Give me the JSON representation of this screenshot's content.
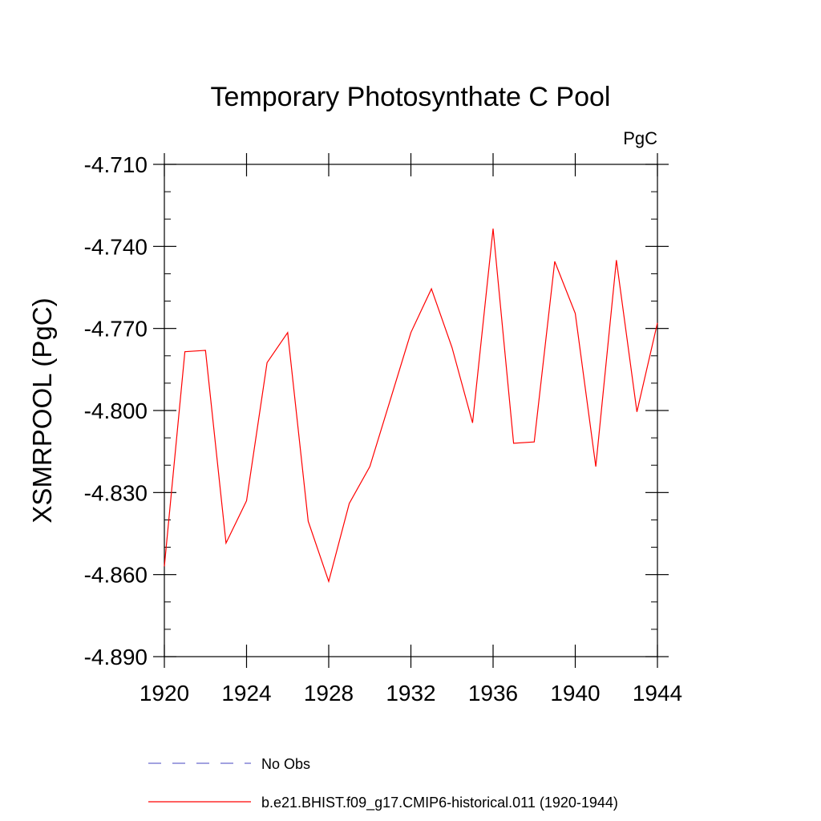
{
  "chart_data": {
    "type": "line",
    "title": "Temporary Photosynthate C Pool",
    "units_label": "PgC",
    "ylabel": "XSMRPOOL  (PgC)",
    "xlabel": "",
    "xlim": [
      1920,
      1944
    ],
    "ylim": [
      -4.89,
      -4.71
    ],
    "x_ticks": [
      1920,
      1924,
      1928,
      1932,
      1936,
      1940,
      1944
    ],
    "x_tick_labels": [
      "1920",
      "1924",
      "1928",
      "1932",
      "1936",
      "1940",
      "1944"
    ],
    "y_ticks": [
      -4.71,
      -4.74,
      -4.77,
      -4.8,
      -4.83,
      -4.86,
      -4.89
    ],
    "y_tick_labels": [
      "-4.710",
      "-4.740",
      "-4.770",
      "-4.800",
      "-4.830",
      "-4.860",
      "-4.890"
    ],
    "grid": false,
    "legend_position": "bottom",
    "series": [
      {
        "name": "b.e21.BHIST.f09_g17.CMIP6-historical.011 (1920-1944)",
        "color": "#ff0000",
        "style": "solid",
        "x": [
          1920,
          1921,
          1922,
          1923,
          1924,
          1925,
          1926,
          1927,
          1928,
          1929,
          1930,
          1931,
          1932,
          1933,
          1934,
          1935,
          1936,
          1937,
          1938,
          1939,
          1940,
          1941,
          1942,
          1943,
          1944
        ],
        "values": [
          -4.857,
          -4.7785,
          -4.778,
          -4.8485,
          -4.833,
          -4.7825,
          -4.7715,
          -4.8405,
          -4.8625,
          -4.834,
          -4.8205,
          -4.796,
          -4.7715,
          -4.7555,
          -4.777,
          -4.8045,
          -4.7335,
          -4.812,
          -4.8115,
          -4.7455,
          -4.7645,
          -4.8205,
          -4.745,
          -4.8005,
          -4.768
        ]
      }
    ],
    "legend": [
      {
        "label": "No Obs",
        "color": "#6a6acd",
        "style": "dashed"
      },
      {
        "label": "b.e21.BHIST.f09_g17.CMIP6-historical.011 (1920-1944)",
        "color": "#ff0000",
        "style": "solid"
      }
    ]
  }
}
